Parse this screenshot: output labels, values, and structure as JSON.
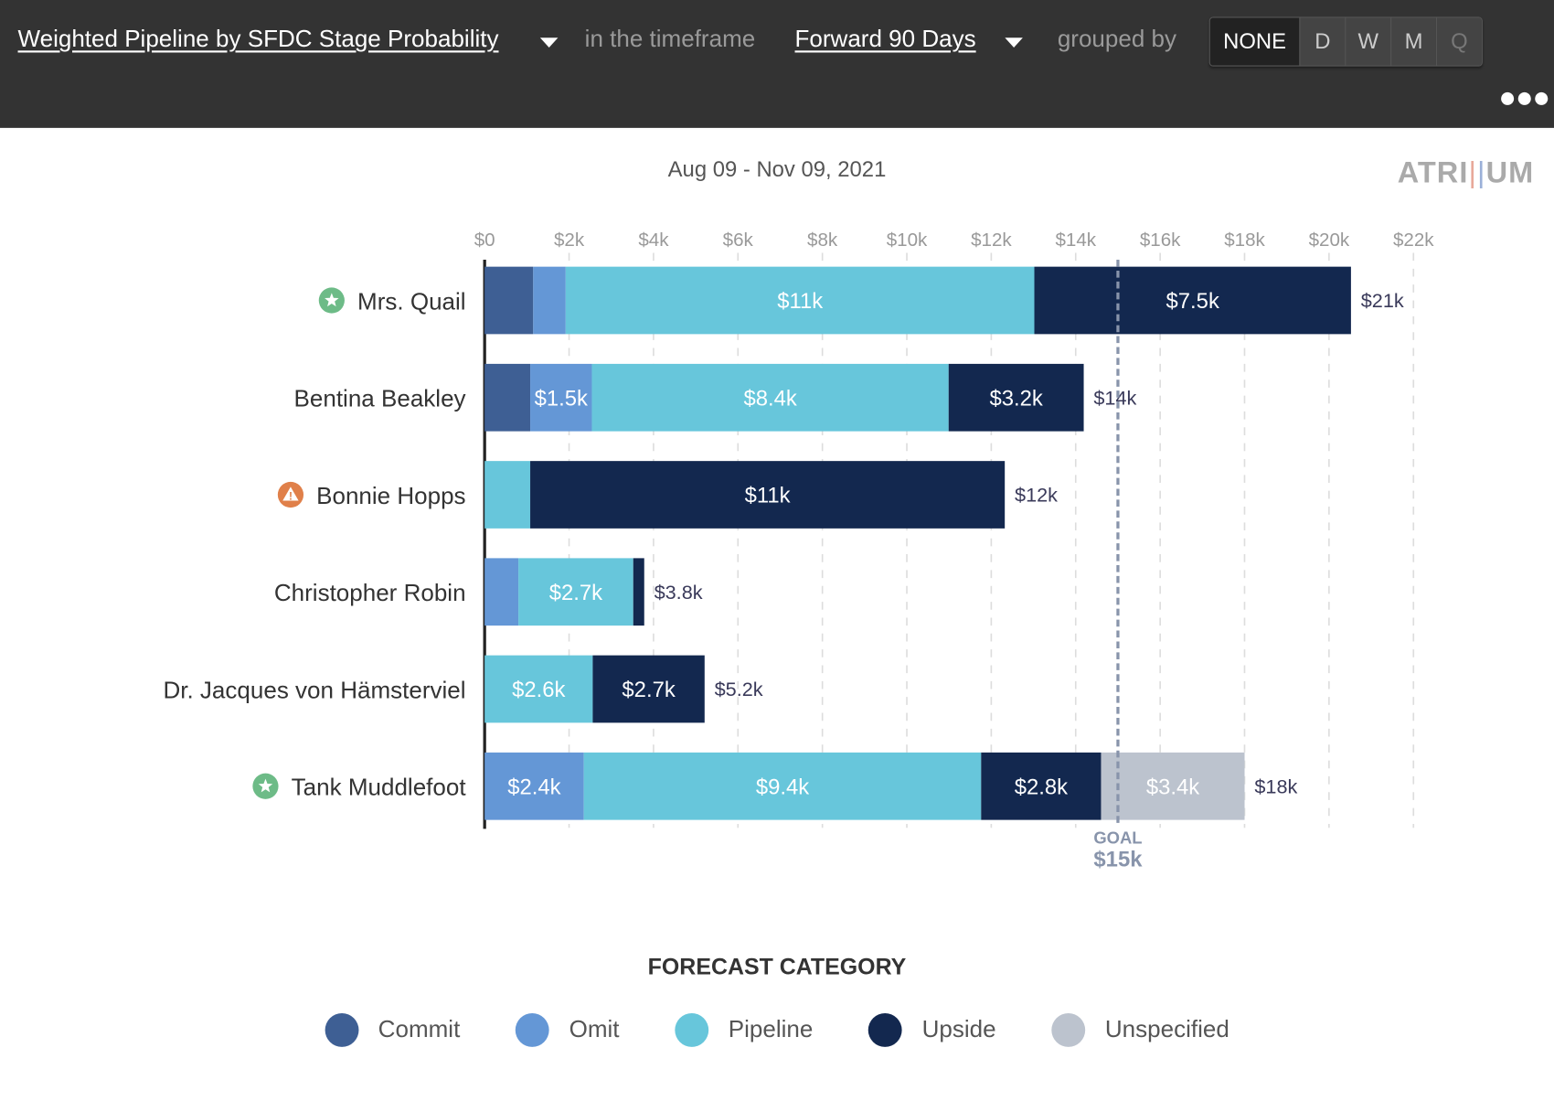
{
  "header": {
    "metric": "Weighted Pipeline by SFDC Stage Probability",
    "timeframe_prefix": "in the timeframe",
    "timeframe": "Forward 90 Days",
    "grouped_prefix": "grouped by",
    "group_options": [
      "NONE",
      "D",
      "W",
      "M",
      "Q"
    ],
    "group_selected": "NONE",
    "more_icon": "more-horizontal-icon"
  },
  "date_range": "Aug 09 - Nov 09, 2021",
  "logo": "ATRIUM",
  "chart_data": {
    "type": "bar",
    "orientation": "horizontal",
    "stacked": true,
    "subtitle": "Aug 09 - Nov 09, 2021",
    "xlim": [
      0,
      22000
    ],
    "x_ticks": [
      0,
      2000,
      4000,
      6000,
      8000,
      10000,
      12000,
      14000,
      16000,
      18000,
      20000,
      22000
    ],
    "x_tick_labels": [
      "$0",
      "$2k",
      "$4k",
      "$6k",
      "$8k",
      "$10k",
      "$12k",
      "$14k",
      "$16k",
      "$18k",
      "$20k",
      "$22k"
    ],
    "grid": true,
    "categories": [
      "Mrs. Quail",
      "Bentina Beakley",
      "Bonnie Hopps",
      "Christopher Robin",
      "Dr. Jacques von Hämsterviel",
      "Tank Muddlefoot"
    ],
    "category_icons": [
      "star-badge",
      "",
      "warning-badge",
      "",
      "",
      "star-badge"
    ],
    "icon_colors": {
      "star-badge": "#6dbb87",
      "warning-badge": "#e0804a"
    },
    "series": [
      {
        "name": "Commit",
        "color": "#3e5f94",
        "values": [
          1150,
          1080,
          0,
          0,
          0,
          0
        ],
        "labels": [
          "",
          "",
          "",
          "",
          "",
          ""
        ]
      },
      {
        "name": "Omit",
        "color": "#6497d6",
        "values": [
          770,
          1460,
          0,
          800,
          0,
          2350
        ],
        "labels": [
          "",
          "$1.5k",
          "",
          "",
          "",
          "$2.4k"
        ]
      },
      {
        "name": "Pipeline",
        "color": "#67c6db",
        "values": [
          11100,
          8450,
          1080,
          2720,
          2560,
          9410
        ],
        "labels": [
          "$11k",
          "$8.4k",
          "",
          "$2.7k",
          "$2.6k",
          "$9.4k"
        ]
      },
      {
        "name": "Upside",
        "color": "#13284f",
        "values": [
          7500,
          3200,
          11240,
          260,
          2650,
          2840
        ],
        "labels": [
          "$7.5k",
          "$3.2k",
          "$11k",
          "",
          "$2.7k",
          "$2.8k"
        ]
      },
      {
        "name": "Unspecified",
        "color": "#bcc3ce",
        "values": [
          0,
          0,
          0,
          0,
          0,
          3400
        ],
        "labels": [
          "",
          "",
          "",
          "",
          "",
          "$3.4k"
        ]
      }
    ],
    "totals": [
      20520,
      14190,
      12320,
      3780,
      5210,
      18000
    ],
    "total_labels": [
      "$21k",
      "$14k",
      "$12k",
      "$3.8k",
      "$5.2k",
      "$18k"
    ],
    "goal": {
      "value": 15000,
      "label": "GOAL",
      "value_label": "$15k",
      "color": "#8894ab"
    },
    "legend_title": "FORECAST CATEGORY",
    "legend_position": "bottom"
  }
}
